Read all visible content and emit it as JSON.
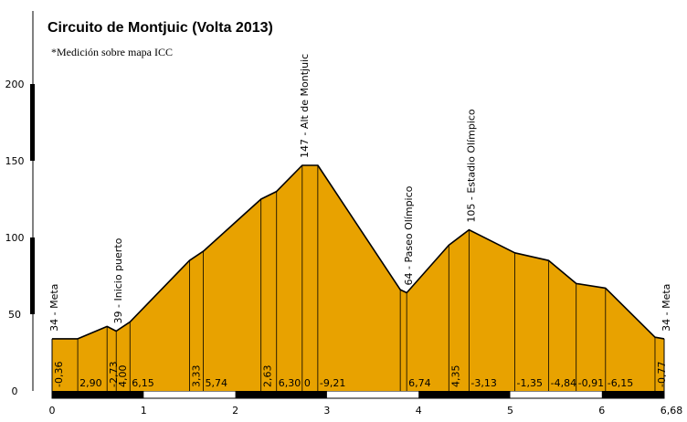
{
  "chart_data": {
    "type": "area",
    "title": "Circuito de Montjuic  (Volta 2013)",
    "subtitle": "*Medición sobre mapa ICC",
    "xlim": [
      0,
      6.68
    ],
    "ylim": [
      0,
      200
    ],
    "x_ticks": [
      {
        "value": 0,
        "label": "0"
      },
      {
        "value": 1,
        "label": "1"
      },
      {
        "value": 2,
        "label": "2"
      },
      {
        "value": 3,
        "label": "3"
      },
      {
        "value": 4,
        "label": "4"
      },
      {
        "value": 5,
        "label": "5"
      },
      {
        "value": 6,
        "label": "6"
      },
      {
        "value": 6.68,
        "label": "6,68"
      }
    ],
    "y_ticks": [
      {
        "value": 0,
        "label": "0"
      },
      {
        "value": 50,
        "label": "50"
      },
      {
        "value": 100,
        "label": "100"
      },
      {
        "value": 150,
        "label": "150"
      },
      {
        "value": 200,
        "label": "200"
      }
    ],
    "fill_color": "#e8a200",
    "profile": [
      {
        "x": 0.0,
        "y": 34
      },
      {
        "x": 0.28,
        "y": 34
      },
      {
        "x": 0.6,
        "y": 42
      },
      {
        "x": 0.7,
        "y": 39
      },
      {
        "x": 0.85,
        "y": 45
      },
      {
        "x": 1.5,
        "y": 85
      },
      {
        "x": 1.65,
        "y": 91
      },
      {
        "x": 2.28,
        "y": 125
      },
      {
        "x": 2.45,
        "y": 130
      },
      {
        "x": 2.73,
        "y": 147
      },
      {
        "x": 2.9,
        "y": 147
      },
      {
        "x": 3.8,
        "y": 66
      },
      {
        "x": 3.87,
        "y": 64
      },
      {
        "x": 4.33,
        "y": 95
      },
      {
        "x": 4.55,
        "y": 105
      },
      {
        "x": 5.05,
        "y": 90
      },
      {
        "x": 5.42,
        "y": 85
      },
      {
        "x": 5.72,
        "y": 70
      },
      {
        "x": 6.04,
        "y": 67
      },
      {
        "x": 6.58,
        "y": 35
      },
      {
        "x": 6.68,
        "y": 34
      }
    ],
    "segment_grades": [
      {
        "x": 0.0,
        "label": "-0,36"
      },
      {
        "x": 0.28,
        "label": "2,90"
      },
      {
        "x": 0.6,
        "label": "-2,73"
      },
      {
        "x": 0.7,
        "label": "4,00"
      },
      {
        "x": 0.85,
        "label": "6,15"
      },
      {
        "x": 1.5,
        "label": "3,33"
      },
      {
        "x": 1.65,
        "label": "5,74"
      },
      {
        "x": 2.28,
        "label": "2,63"
      },
      {
        "x": 2.45,
        "label": "6,30"
      },
      {
        "x": 2.73,
        "label": "0"
      },
      {
        "x": 2.9,
        "label": "-9,21"
      },
      {
        "x": 3.87,
        "label": "6,74"
      },
      {
        "x": 4.33,
        "label": "4,35"
      },
      {
        "x": 4.55,
        "label": "-3,13"
      },
      {
        "x": 5.05,
        "label": "-1,35"
      },
      {
        "x": 5.42,
        "label": "-4,84"
      },
      {
        "x": 5.72,
        "label": "-0,91"
      },
      {
        "x": 6.04,
        "label": "-6,15"
      },
      {
        "x": 6.58,
        "label": "-0,77"
      }
    ],
    "annotations": [
      {
        "x": 0.0,
        "y": 34,
        "label": "34 - Meta"
      },
      {
        "x": 0.7,
        "y": 39,
        "label": "39 - Inicio puerto"
      },
      {
        "x": 2.73,
        "y": 147,
        "label": "147 - Alt de Montjuic"
      },
      {
        "x": 3.87,
        "y": 64,
        "label": "64 - Paseo Olímpico"
      },
      {
        "x": 4.55,
        "y": 105,
        "label": "105 - Estadio Olímpico"
      },
      {
        "x": 6.68,
        "y": 34,
        "label": "34 - Meta"
      }
    ]
  }
}
